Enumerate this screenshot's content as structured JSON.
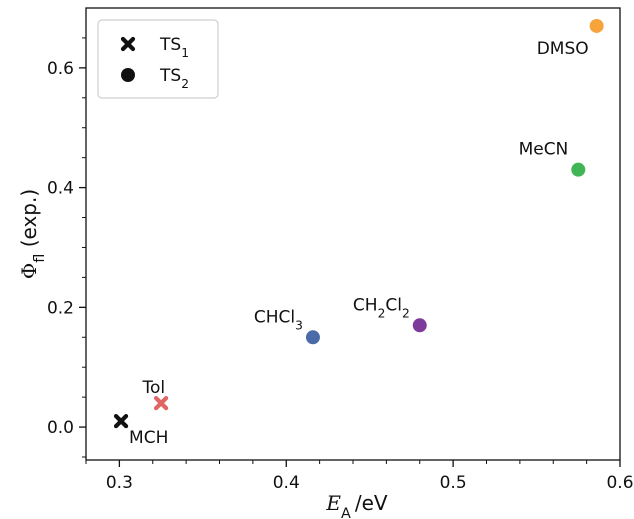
{
  "chart_data": {
    "type": "scatter",
    "xlabel": {
      "symbol": "E",
      "subscript": "A",
      "unit": "/eV"
    },
    "ylabel": {
      "symbol": "Φ",
      "subscript": "fl",
      "suffix": " (exp.)"
    },
    "xlim": [
      0.28,
      0.6
    ],
    "ylim": [
      -0.055,
      0.7
    ],
    "xticks": [
      0.3,
      0.4,
      0.5,
      0.6
    ],
    "xtick_labels": [
      "0.3",
      "0.4",
      "0.5",
      "0.6"
    ],
    "yticks": [
      0.0,
      0.2,
      0.4,
      0.6
    ],
    "ytick_labels": [
      "0.0",
      "0.2",
      "0.4",
      "0.6"
    ],
    "legend": {
      "placement": "top-left",
      "entries": [
        {
          "marker": "x-icon",
          "label": "TS",
          "sub": "1"
        },
        {
          "marker": "circle-icon",
          "label": "TS",
          "sub": "2"
        }
      ]
    },
    "points": [
      {
        "base": "MCH",
        "parts": [
          [
            "MCH",
            ""
          ]
        ],
        "x": 0.301,
        "y": 0.01,
        "marker": "x",
        "color": "#111111",
        "label_pos": "below-right"
      },
      {
        "base": "Tol",
        "parts": [
          [
            "Tol",
            ""
          ]
        ],
        "x": 0.325,
        "y": 0.04,
        "marker": "x",
        "color": "#e06666",
        "label_pos": "above-left"
      },
      {
        "base": "CHCl3",
        "parts": [
          [
            "CHCl",
            ""
          ],
          [
            "",
            "3"
          ]
        ],
        "x": 0.416,
        "y": 0.15,
        "marker": "circle",
        "color": "#4a6aa8",
        "label_pos": "above-left"
      },
      {
        "base": "CH2Cl2",
        "parts": [
          [
            "CH",
            ""
          ],
          [
            "",
            "2"
          ],
          [
            "Cl",
            ""
          ],
          [
            "",
            "2"
          ]
        ],
        "x": 0.48,
        "y": 0.17,
        "marker": "circle",
        "color": "#7e3a9b",
        "label_pos": "above-left"
      },
      {
        "base": "MeCN",
        "parts": [
          [
            "MeCN",
            ""
          ]
        ],
        "x": 0.575,
        "y": 0.43,
        "marker": "circle",
        "color": "#3fb555",
        "label_pos": "above-left"
      },
      {
        "base": "DMSO",
        "parts": [
          [
            "DMSO",
            ""
          ]
        ],
        "x": 0.586,
        "y": 0.67,
        "marker": "circle",
        "color": "#f5a33a",
        "label_pos": "below-left"
      }
    ]
  }
}
